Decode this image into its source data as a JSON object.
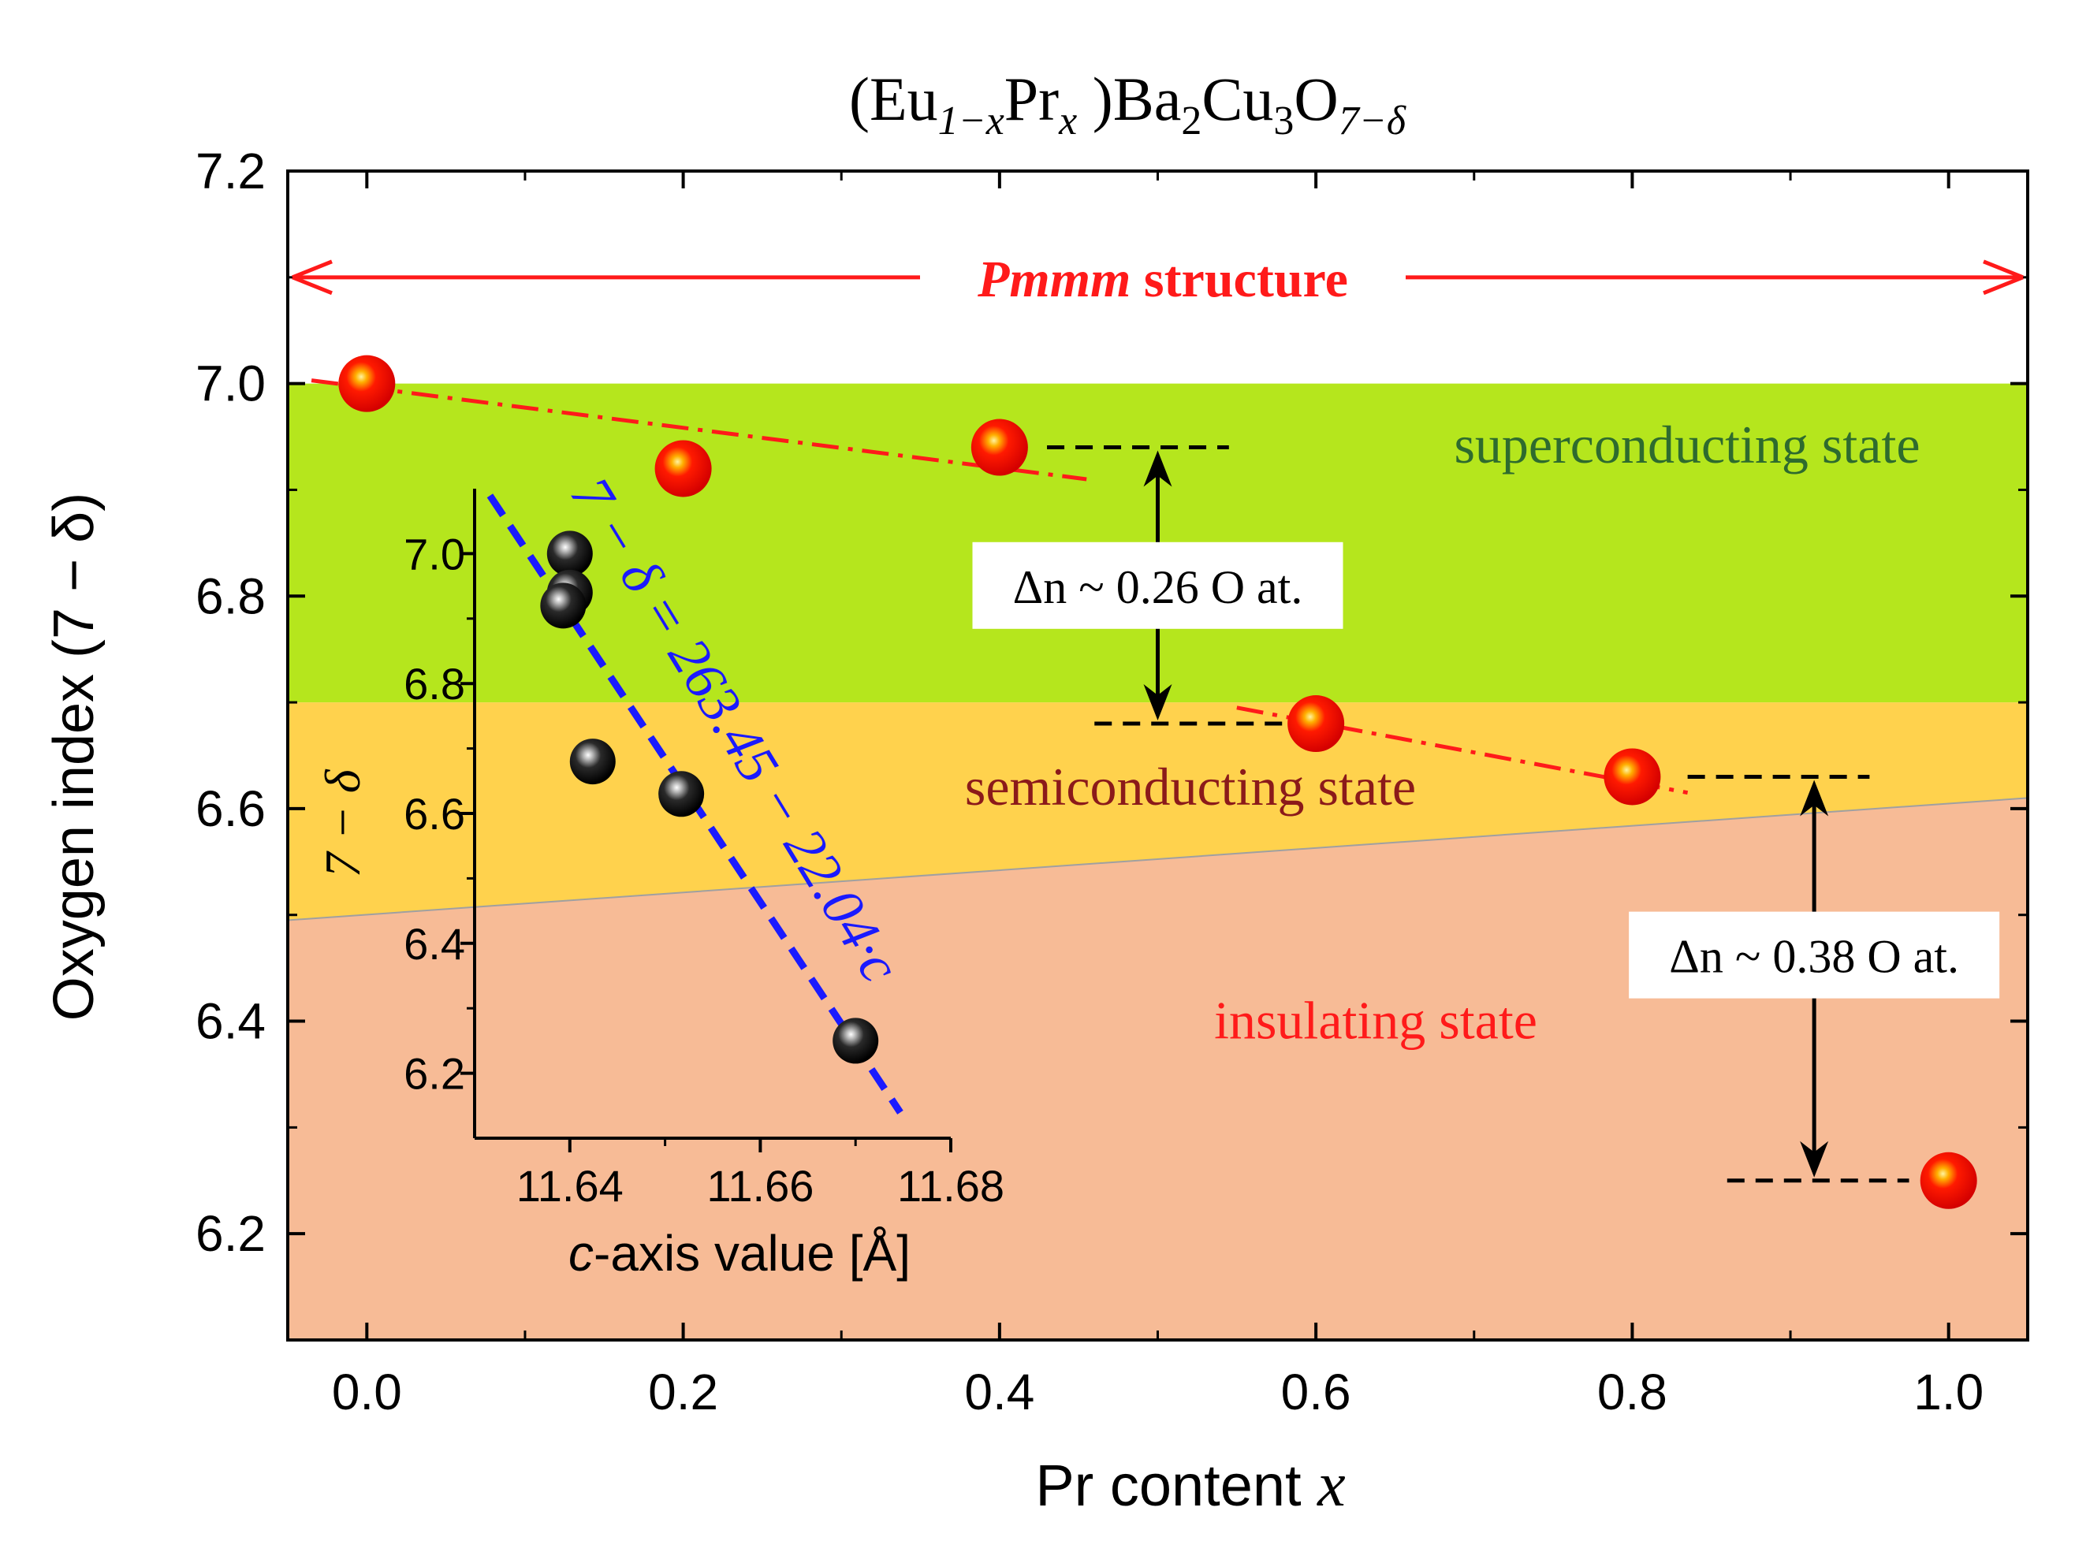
{
  "chart_data": {
    "type": "scatter",
    "title": {
      "pre": "(Eu",
      "sub1": "1−x",
      "mid1": "Pr",
      "sub2": "x",
      "mid2": " )Ba",
      "sub3": "2",
      "mid3": "Cu",
      "sub4": "3",
      "mid4": "O",
      "sub5": "7−δ"
    },
    "xlabel": {
      "text": "Pr content ",
      "var": "x"
    },
    "ylabel": "Oxygen index (7 − δ)",
    "xlim": [
      -0.05,
      1.05
    ],
    "ylim": [
      6.1,
      7.2
    ],
    "xticks": [
      "0.0",
      "0.2",
      "0.4",
      "0.6",
      "0.8",
      "1.0"
    ],
    "yticks": [
      "6.2",
      "6.4",
      "6.6",
      "6.8",
      "7.0",
      "7.2"
    ],
    "points": [
      {
        "x": 0.0,
        "y": 7.0
      },
      {
        "x": 0.2,
        "y": 6.92
      },
      {
        "x": 0.4,
        "y": 6.94
      },
      {
        "x": 0.6,
        "y": 6.68
      },
      {
        "x": 0.8,
        "y": 6.63
      },
      {
        "x": 1.0,
        "y": 6.25
      }
    ],
    "fit_lines": [
      {
        "x": [
          -0.035,
          0.455
        ],
        "y": [
          7.003,
          6.91
        ]
      },
      {
        "x": [
          0.55,
          0.835
        ],
        "y": [
          6.695,
          6.615
        ]
      }
    ],
    "regions": [
      {
        "label": "superconducting state",
        "color": "#b5e61d",
        "ybottom": [
          6.7,
          6.7
        ],
        "ytop": [
          7.0,
          7.0
        ],
        "label_color": "#2e6b2e"
      },
      {
        "label": "semiconducting state",
        "color": "#ffd24d",
        "ybottom": [
          6.495,
          6.61
        ],
        "ytop": [
          6.7,
          6.7
        ],
        "label_color": "#8b1a1a"
      },
      {
        "label": "insulating state",
        "color": "#f7bb96",
        "ybottom": [
          6.1,
          6.1
        ],
        "ytop": [
          6.495,
          6.61
        ],
        "label_color": "#ff1a1a"
      }
    ],
    "structure_label": {
      "italic": "Pmmm",
      "rest": " structure"
    },
    "annotations": [
      {
        "text": "Δn ~ 0.26 O at.",
        "x": 0.5,
        "y_from": 6.94,
        "y_to": 6.68
      },
      {
        "text": "Δn ~ 0.38 O at.",
        "x": 0.915,
        "y_from": 6.63,
        "y_to": 6.25
      }
    ],
    "dashed_refs": [
      {
        "x": [
          0.43,
          0.545
        ],
        "y": 6.94
      },
      {
        "x": [
          0.46,
          0.59
        ],
        "y": 6.68
      },
      {
        "x": [
          0.835,
          0.95
        ],
        "y": 6.63
      },
      {
        "x": [
          0.86,
          0.975
        ],
        "y": 6.25
      }
    ],
    "inset": {
      "xlabel": {
        "var": "c",
        "rest": "-axis value [Å]"
      },
      "ylabel": "7 − δ",
      "xlim": [
        11.63,
        11.68
      ],
      "ylim": [
        6.1,
        7.1
      ],
      "xticks": [
        "11.64",
        "11.66",
        "11.68"
      ],
      "yticks": [
        "6.2",
        "6.4",
        "6.6",
        "6.8",
        "7.0"
      ],
      "points": [
        {
          "x": 11.64,
          "y": 7.0
        },
        {
          "x": 11.64,
          "y": 6.94
        },
        {
          "x": 11.6393,
          "y": 6.92
        },
        {
          "x": 11.6424,
          "y": 6.68
        },
        {
          "x": 11.6517,
          "y": 6.63
        },
        {
          "x": 11.67,
          "y": 6.25
        }
      ],
      "fit_line": {
        "slope": -22.04,
        "intercept": 263.45,
        "x": [
          11.6295,
          11.6747
        ]
      },
      "equation": "7 − δ = 263.45 − 22.04·c"
    }
  }
}
